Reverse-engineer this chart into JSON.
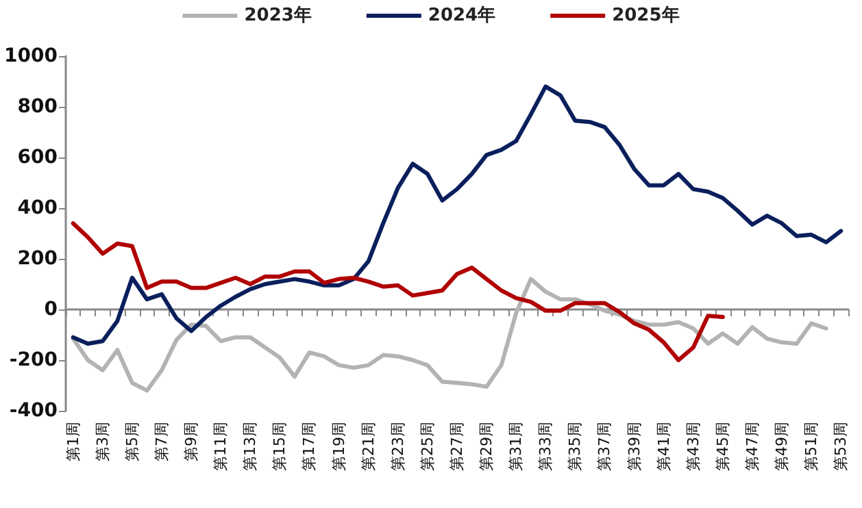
{
  "chart_data": {
    "type": "line",
    "categories": [
      "第1周",
      null,
      "第3周",
      null,
      "第5周",
      null,
      "第7周",
      null,
      "第9周",
      null,
      "第11周",
      null,
      "第13周",
      null,
      "第15周",
      null,
      "第17周",
      null,
      "第19周",
      null,
      "第21周",
      null,
      "第23周",
      null,
      "第25周",
      null,
      "第27周",
      null,
      "第29周",
      null,
      "第31周",
      null,
      "第33周",
      null,
      "第35周",
      null,
      "第37周",
      null,
      "第39周",
      null,
      "第41周",
      null,
      "第43周",
      null,
      "第45周",
      null,
      "第47周",
      null,
      "第49周",
      null,
      "第51周",
      null,
      "第53周"
    ],
    "series": [
      {
        "name": "2023年",
        "color": "#b3b3b3",
        "values": [
          -115,
          -200,
          -240,
          -160,
          -290,
          -320,
          -240,
          -120,
          -60,
          -65,
          -125,
          -110,
          -110,
          -150,
          -190,
          -265,
          -170,
          -185,
          -220,
          -230,
          -220,
          -180,
          -185,
          -200,
          -220,
          -285,
          -290,
          -295,
          -305,
          -220,
          -15,
          120,
          70,
          40,
          40,
          20,
          -5,
          -20,
          -45,
          -60,
          -60,
          -50,
          -75,
          -135,
          -95,
          -135,
          -70,
          -115,
          -130,
          -135,
          -55,
          -75,
          null
        ]
      },
      {
        "name": "2024年",
        "color": "#0a1f5c",
        "values": [
          -110,
          -135,
          -125,
          -45,
          125,
          40,
          60,
          -35,
          -85,
          -30,
          15,
          50,
          80,
          100,
          110,
          120,
          110,
          95,
          95,
          120,
          190,
          340,
          480,
          575,
          535,
          430,
          475,
          535,
          610,
          630,
          665,
          770,
          880,
          845,
          745,
          740,
          720,
          650,
          555,
          490,
          490,
          535,
          475,
          465,
          440,
          390,
          335,
          370,
          340,
          290,
          295,
          265,
          310
        ]
      },
      {
        "name": "2025年",
        "color": "#b00000",
        "values": [
          340,
          285,
          220,
          260,
          250,
          85,
          110,
          110,
          85,
          85,
          105,
          125,
          100,
          130,
          130,
          150,
          150,
          105,
          120,
          125,
          110,
          90,
          95,
          55,
          65,
          75,
          140,
          165,
          120,
          75,
          45,
          30,
          -5,
          -5,
          25,
          25,
          25,
          -10,
          -55,
          -80,
          -130,
          -200,
          -150,
          -25,
          -30,
          null,
          null,
          null,
          null,
          null,
          null,
          null,
          null
        ]
      }
    ],
    "ylim": [
      -400,
      1000
    ],
    "yticks": [
      -400,
      -200,
      0,
      200,
      400,
      600,
      800,
      1000
    ],
    "legend": "top",
    "marker": "none",
    "line_style": "solid"
  }
}
